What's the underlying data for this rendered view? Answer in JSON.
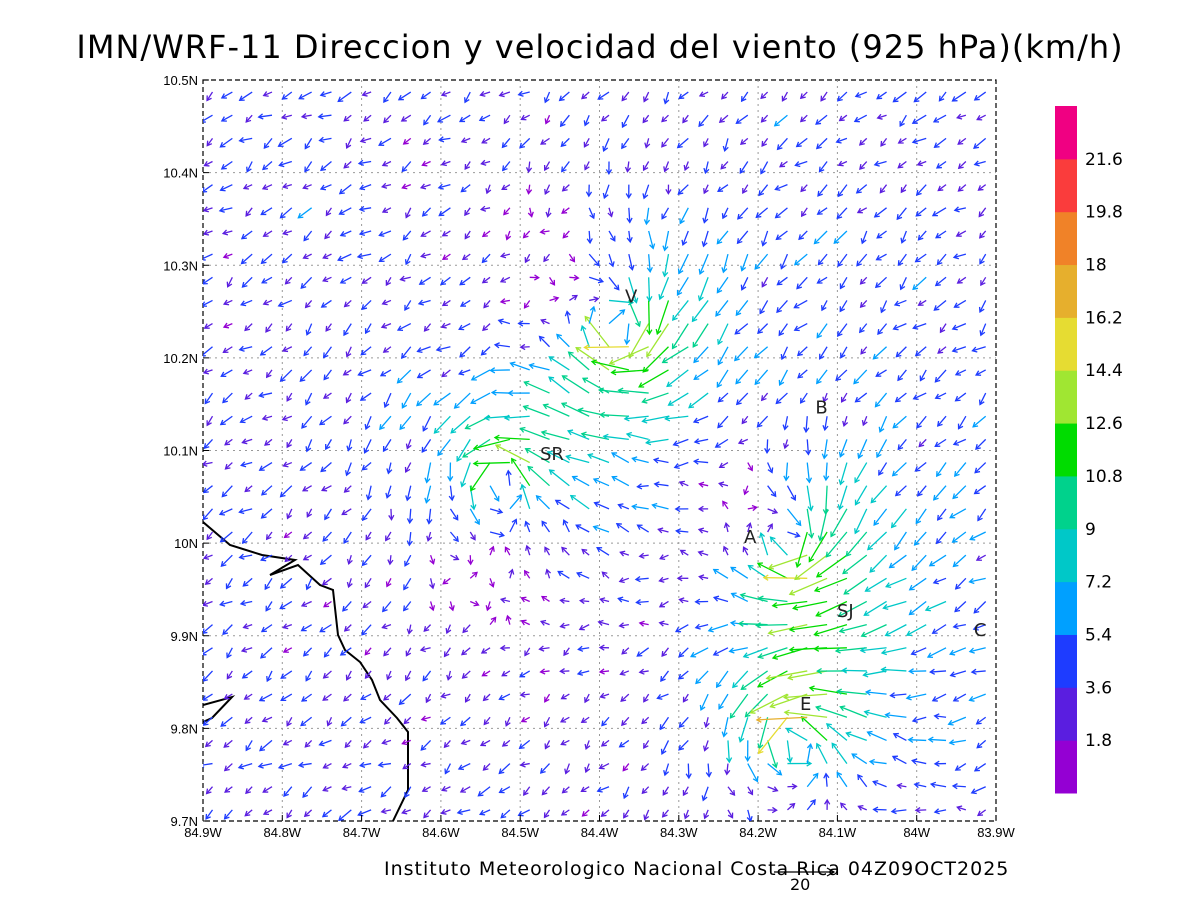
{
  "title": "IMN/WRF-11 Direccion y velocidad del viento (925 hPa)(km/h)",
  "credit": "Instituto Meteorologico Nacional Costa Rica  04Z09OCT2025",
  "reference_vector": {
    "label": "20",
    "value": 20
  },
  "axes": {
    "lon_labels": [
      "84.9W",
      "84.8W",
      "84.7W",
      "84.6W",
      "84.5W",
      "84.4W",
      "84.3W",
      "84.2W",
      "84.1W",
      "84W",
      "83.9W"
    ],
    "lat_labels": [
      "10.5N",
      "10.4N",
      "10.3N",
      "10.2N",
      "10.1N",
      "10N",
      "9.9N",
      "9.8N",
      "9.7N"
    ],
    "lon_range": [
      -84.9,
      -83.9
    ],
    "lat_range": [
      9.7,
      10.5
    ],
    "grid": "dotted"
  },
  "places": [
    {
      "name": "V",
      "lon": -84.36,
      "lat": 10.26
    },
    {
      "name": "B",
      "lon": -84.12,
      "lat": 10.14
    },
    {
      "name": "SR",
      "lon": -84.46,
      "lat": 10.09
    },
    {
      "name": "A",
      "lon": -84.21,
      "lat": 10.0
    },
    {
      "name": "SJ",
      "lon": -84.09,
      "lat": 9.92
    },
    {
      "name": "C",
      "lon": -83.92,
      "lat": 9.9
    },
    {
      "name": "E",
      "lon": -84.14,
      "lat": 9.82
    }
  ],
  "colorbar": {
    "labels": [
      "1.8",
      "3.6",
      "5.4",
      "7.2",
      "9",
      "10.8",
      "12.6",
      "14.4",
      "16.2",
      "18",
      "19.8",
      "21.6"
    ],
    "colors": [
      "#9400d3",
      "#5a1ee0",
      "#1e3cff",
      "#00a0ff",
      "#00c8c8",
      "#00d28c",
      "#00dc00",
      "#a0e632",
      "#e6dc32",
      "#e6af2d",
      "#f08228",
      "#fa3c3c",
      "#f00082"
    ]
  },
  "wind_field": {
    "units": "km/h",
    "vortices": [
      {
        "lon": -84.37,
        "lat": 10.23,
        "strength": 14
      },
      {
        "lon": -84.52,
        "lat": 10.07,
        "strength": 11
      },
      {
        "lon": -84.15,
        "lat": 10.0,
        "strength": 12
      },
      {
        "lon": -84.15,
        "lat": 9.79,
        "strength": 13
      }
    ],
    "background_u": -3,
    "background_v": -2
  }
}
